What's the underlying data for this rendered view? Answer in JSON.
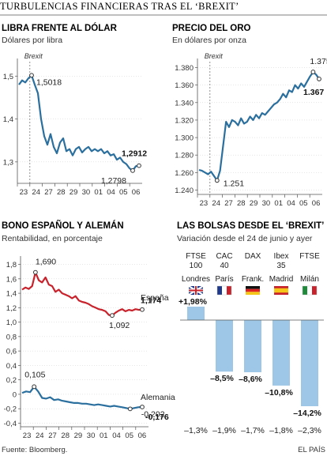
{
  "header": {
    "title": "TURBULENCIAS FINANCIERAS TRAS EL ‘BREXIT’",
    "source": "Fuente: Bloomberg.",
    "credit": "EL PAÍS"
  },
  "chart_data": [
    {
      "type": "line",
      "title": "LIBRA FRENTE AL DÓLAR",
      "subtitle": "Dólares por libra",
      "x_ticks": [
        "23",
        "24",
        "27",
        "28",
        "29",
        "30",
        "01",
        "04",
        "05",
        "06"
      ],
      "ylim": [
        1.25,
        1.53
      ],
      "y_ticks": [
        "1,3",
        "1,4",
        "1,5"
      ],
      "marker_label": "Brexit",
      "color": "#2a6f9e",
      "series": [
        {
          "values": [
            1.48,
            1.49,
            1.485,
            1.495,
            1.5018,
            1.48,
            1.46,
            1.4,
            1.36,
            1.34,
            1.365,
            1.335,
            1.32,
            1.345,
            1.355,
            1.325,
            1.33,
            1.315,
            1.33,
            1.335,
            1.322,
            1.33,
            1.335,
            1.325,
            1.33,
            1.325,
            1.33,
            1.32,
            1.325,
            1.315,
            1.318,
            1.305,
            1.31,
            1.3,
            1.295,
            1.285,
            1.2798,
            1.29,
            1.2912
          ]
        }
      ],
      "annotations": [
        {
          "label": "1,5018",
          "bold": false
        },
        {
          "label": "1,2912",
          "bold": true
        },
        {
          "label": "1,2798",
          "bold": false
        }
      ]
    },
    {
      "type": "line",
      "title": "PRECIO DEL ORO",
      "subtitle": "En dólares por onza",
      "x_ticks": [
        "23",
        "24",
        "27",
        "28",
        "29",
        "30",
        "01",
        "04",
        "05",
        "06"
      ],
      "ylim": [
        1235,
        1385
      ],
      "y_ticks": [
        "1.240",
        "1.260",
        "1.280",
        "1.300",
        "1.320",
        "1.340",
        "1.360",
        "1.380"
      ],
      "marker_label": "Brexit",
      "color": "#2a6f9e",
      "series": [
        {
          "values": [
            1263,
            1262,
            1260,
            1258,
            1261,
            1256,
            1251,
            1262,
            1290,
            1318,
            1312,
            1320,
            1318,
            1314,
            1322,
            1316,
            1318,
            1324,
            1320,
            1326,
            1322,
            1328,
            1326,
            1330,
            1334,
            1338,
            1340,
            1344,
            1350,
            1346,
            1354,
            1352,
            1360,
            1356,
            1362,
            1358,
            1364,
            1370,
            1375,
            1372,
            1367
          ]
        }
      ],
      "annotations": [
        {
          "label": "1.375",
          "bold": false
        },
        {
          "label": "1.367",
          "bold": true
        },
        {
          "label": "1.251",
          "bold": false
        }
      ]
    },
    {
      "type": "line",
      "title": "BONO ESPAÑOL Y ALEMÁN",
      "subtitle": "Rentabilidad, en porcentaje",
      "x_ticks": [
        "23",
        "24",
        "27",
        "28",
        "29",
        "30",
        "01",
        "04",
        "05",
        "06"
      ],
      "ylim": [
        -0.45,
        1.85
      ],
      "y_ticks": [
        "-0,4",
        "-0,2",
        "0",
        "0,2",
        "0,4",
        "0,6",
        "0,8",
        "1,0",
        "1,2",
        "1,4",
        "1,6",
        "1,8"
      ],
      "series": [
        {
          "name": "España",
          "color": "#c8232c",
          "values": [
            1.45,
            1.48,
            1.46,
            1.5,
            1.69,
            1.58,
            1.55,
            1.62,
            1.52,
            1.5,
            1.42,
            1.45,
            1.4,
            1.38,
            1.36,
            1.33,
            1.36,
            1.3,
            1.28,
            1.27,
            1.25,
            1.22,
            1.2,
            1.18,
            1.17,
            1.15,
            1.1,
            1.092,
            1.13,
            1.16,
            1.18,
            1.15,
            1.17,
            1.16,
            1.18,
            1.17,
            1.174
          ]
        },
        {
          "name": "Alemania",
          "color": "#2a6f9e",
          "values": [
            0.02,
            0.04,
            0.03,
            0.105,
            0.04,
            -0.05,
            -0.06,
            -0.04,
            -0.08,
            -0.07,
            -0.09,
            -0.1,
            -0.11,
            -0.12,
            -0.12,
            -0.13,
            -0.13,
            -0.14,
            -0.15,
            -0.14,
            -0.15,
            -0.16,
            -0.17,
            -0.16,
            -0.17,
            -0.18,
            -0.19,
            -0.202,
            -0.19,
            -0.18,
            -0.176
          ]
        }
      ],
      "annotations": [
        {
          "label": "1,690",
          "bold": false
        },
        {
          "label": "1,174",
          "bold": true
        },
        {
          "label": "1,092",
          "bold": false
        },
        {
          "label": "0,105",
          "bold": false
        },
        {
          "label": "-0,176",
          "bold": true
        },
        {
          "label": "-0,202",
          "bold": false
        }
      ]
    },
    {
      "type": "bar",
      "title": "LAS BOLSAS DESDE EL ‘BREXIT’",
      "subtitle": "Variación desde el 24 de junio y ayer",
      "categories": [
        {
          "index": [
            "FTSE",
            "100"
          ],
          "city": "Londres",
          "flag": "uk"
        },
        {
          "index": [
            "CAC",
            "40"
          ],
          "city": "París",
          "flag": "fr"
        },
        {
          "index": [
            "DAX"
          ],
          "city": "Frank.",
          "flag": "de"
        },
        {
          "index": [
            "Ibex",
            "35"
          ],
          "city": "Madrid",
          "flag": "es"
        },
        {
          "index": [
            "FTSE"
          ],
          "city": "Milán",
          "flag": "it"
        }
      ],
      "values": [
        1.98,
        -8.5,
        -8.6,
        -10.8,
        -14.2
      ],
      "value_labels": [
        "+1,98%",
        "–8,5%",
        "–8,6%",
        "–10,8%",
        "–14,2%"
      ],
      "daily_labels": [
        "–1,3%",
        "–1,9%",
        "–1,7%",
        "–1,8%",
        "–2,3%"
      ],
      "color": "#9ec6e6",
      "ylim": [
        -14.2,
        1.98
      ]
    }
  ]
}
